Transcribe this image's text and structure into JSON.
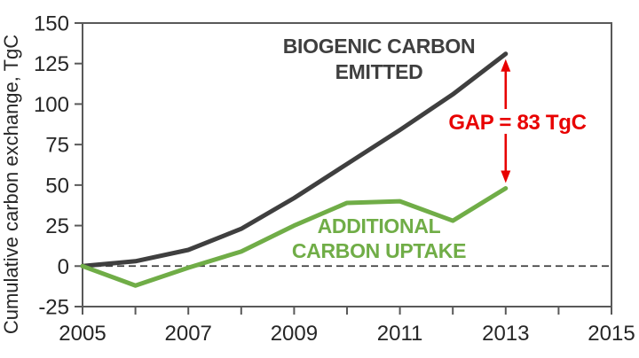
{
  "chart_data": {
    "type": "line",
    "title": "",
    "xlabel": "",
    "ylabel": "Cumulative carbon exchange, TgC",
    "x": [
      2005,
      2006,
      2007,
      2008,
      2009,
      2010,
      2011,
      2012,
      2013
    ],
    "series": [
      {
        "name": "Biogenic carbon emitted",
        "label_lines": [
          "BIOGENIC CARBON",
          "EMITTED"
        ],
        "color": "#3f3f3f",
        "values": [
          0,
          3,
          10,
          23,
          42,
          63,
          84,
          106,
          131
        ]
      },
      {
        "name": "Additional carbon uptake",
        "label_lines": [
          "ADDITIONAL",
          "CARBON UPTAKE"
        ],
        "color": "#70ad47",
        "values": [
          0,
          -12,
          -1,
          9,
          25,
          39,
          40,
          28,
          48
        ]
      }
    ],
    "xlim": [
      2005,
      2015
    ],
    "ylim": [
      -25,
      150
    ],
    "y_ticks": [
      150,
      125,
      100,
      75,
      50,
      25,
      0,
      -25
    ],
    "x_ticks_labeled": [
      2005,
      2007,
      2009,
      2011,
      2013,
      2015
    ],
    "x_tick_every": 1,
    "grid": "off",
    "zero_line": "dashed",
    "legend": "inline-annotations",
    "annotations": {
      "gap_label": "GAP = 83 TgC",
      "gap_value": 83,
      "gap_at_x": 2013,
      "gap_color": "#e80000"
    },
    "colors": {
      "axis": "#595959",
      "tick_label": "#262626",
      "zero_line": "#3f3f3f"
    }
  }
}
